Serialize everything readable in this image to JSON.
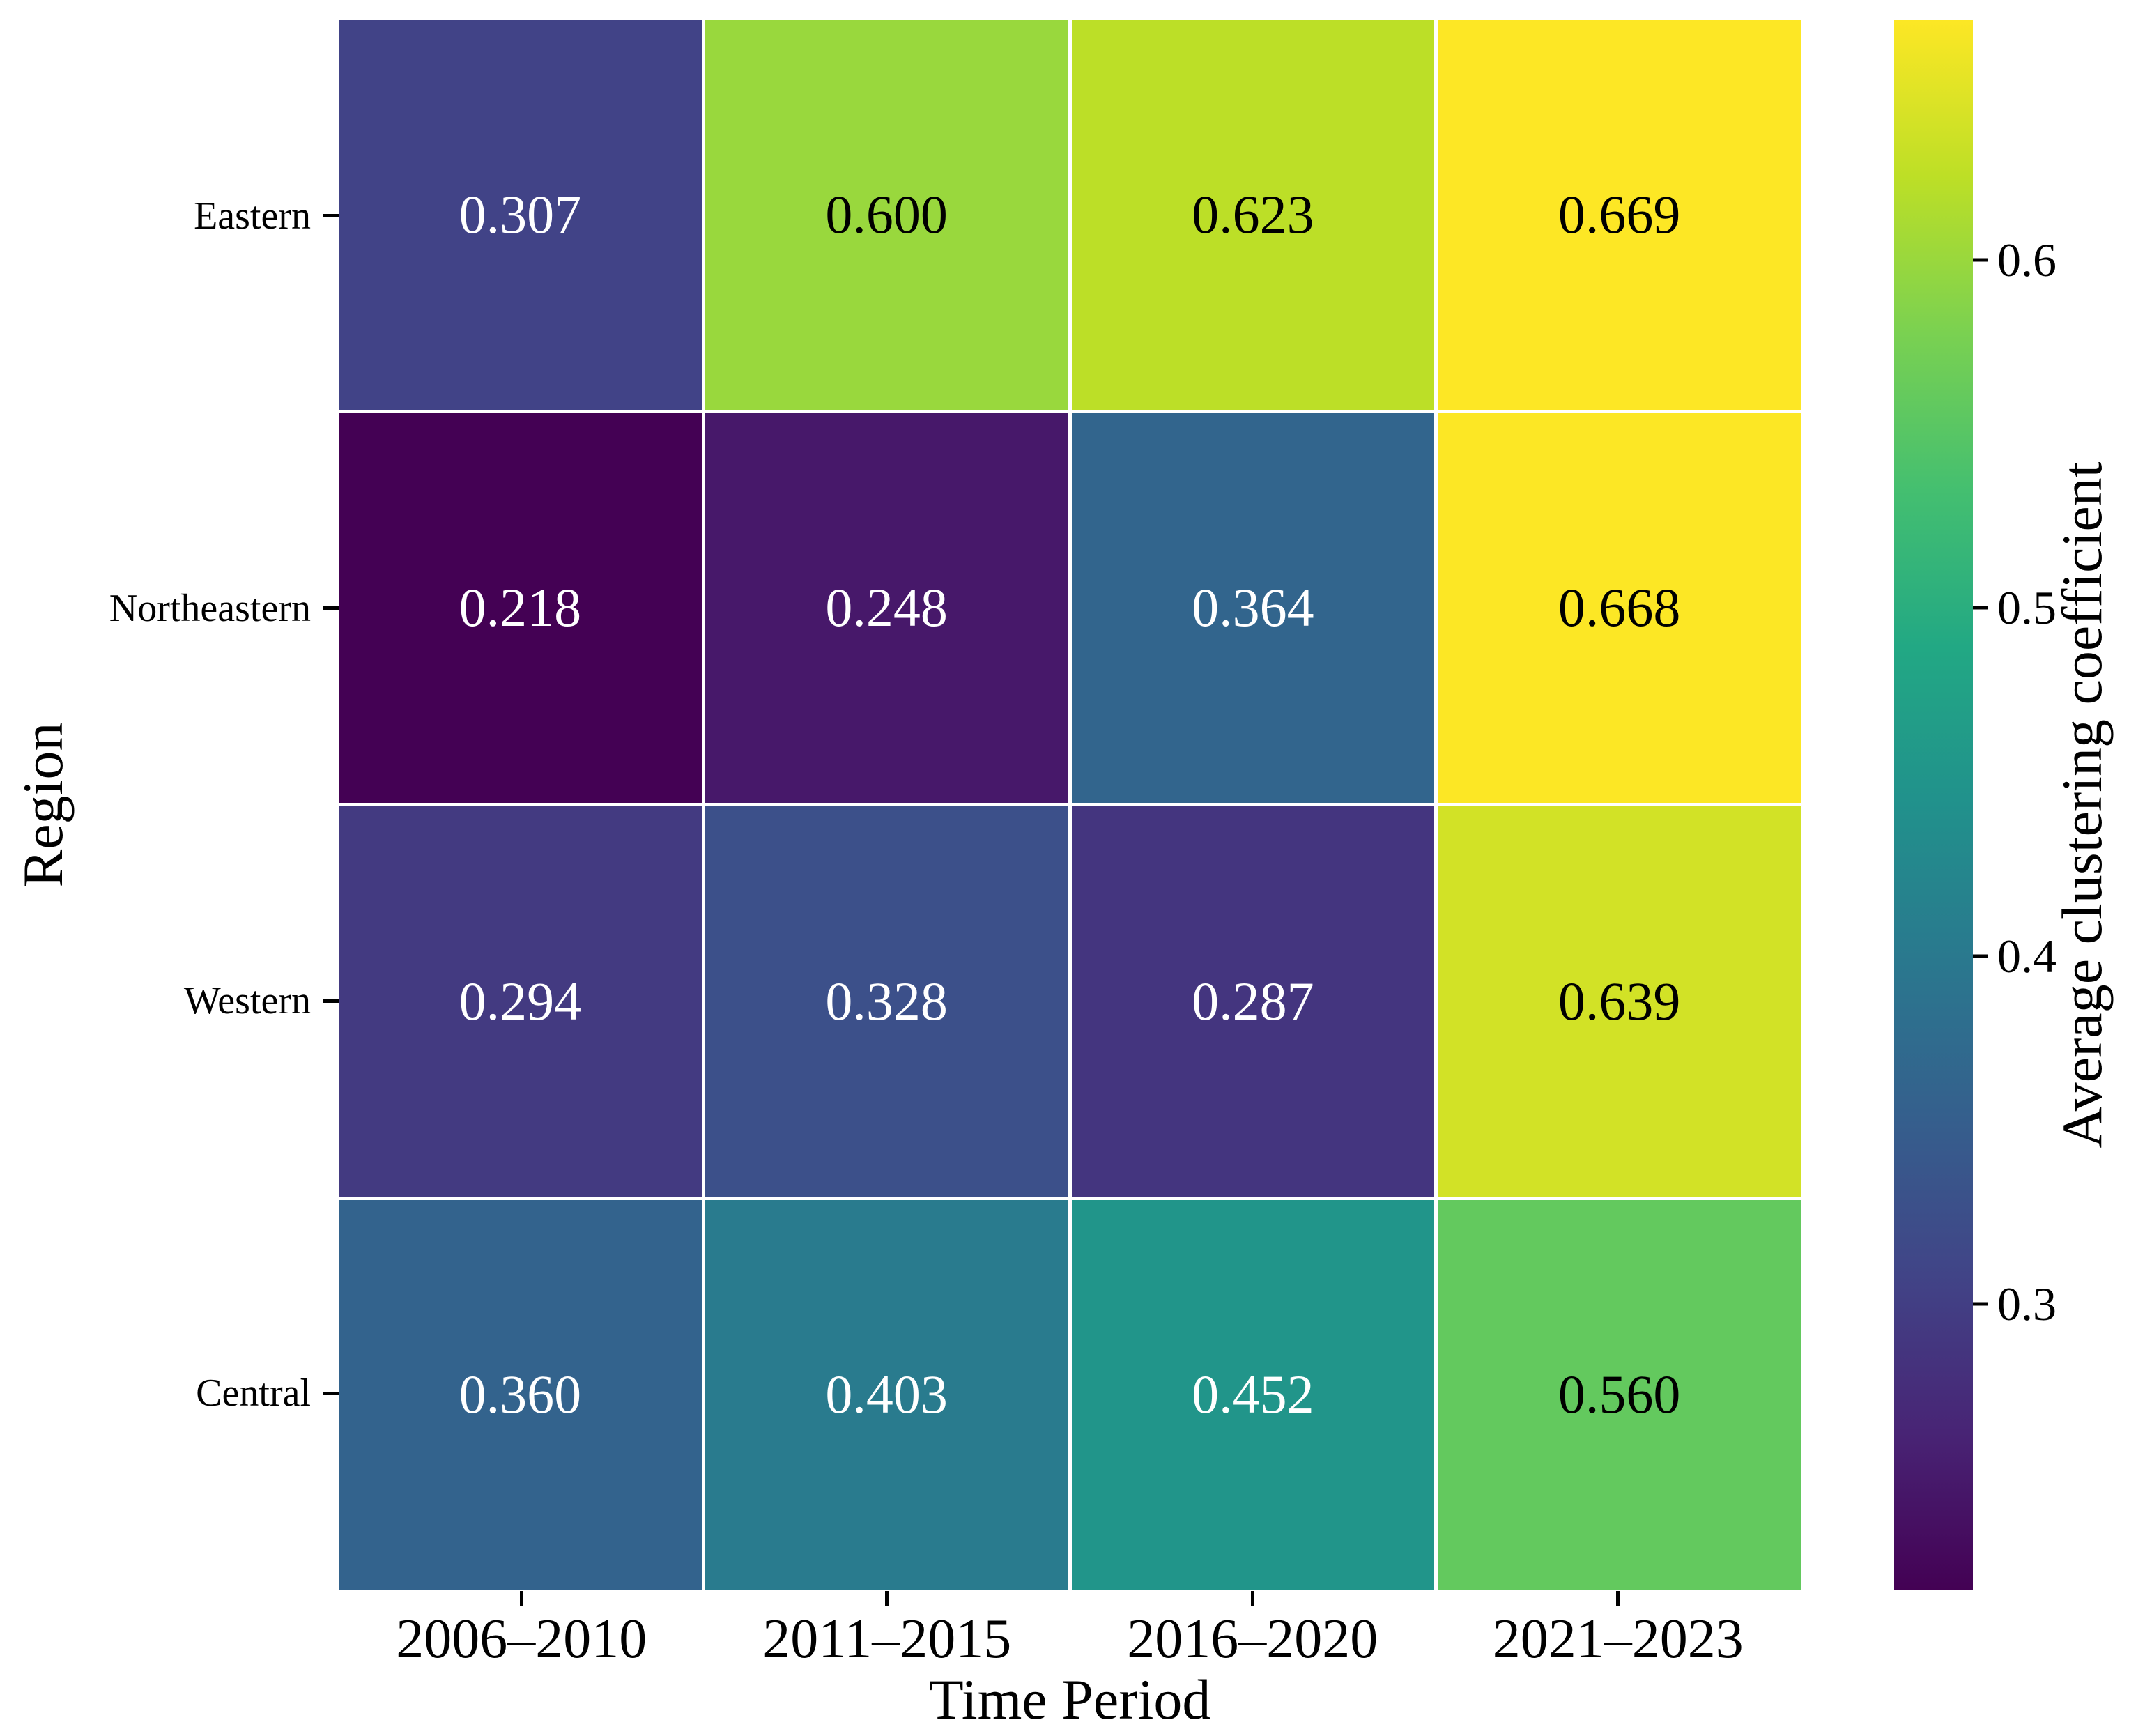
{
  "chart_data": {
    "type": "heatmap",
    "xlabel": "Time Period",
    "ylabel": "Region",
    "colorbar_label": "Average clustering coefficient",
    "x_categories": [
      "2006–2010",
      "2011–2015",
      "2016–2020",
      "2021–2023"
    ],
    "y_categories": [
      "Eastern",
      "Northeastern",
      "Western",
      "Central"
    ],
    "values": [
      [
        0.307,
        0.6,
        0.623,
        0.669
      ],
      [
        0.218,
        0.248,
        0.364,
        0.668
      ],
      [
        0.294,
        0.328,
        0.287,
        0.639
      ],
      [
        0.36,
        0.403,
        0.452,
        0.56
      ]
    ],
    "value_decimals": 3,
    "vmin": 0.218,
    "vmax": 0.669,
    "colormap": "viridis",
    "colormap_anchors": [
      "#440154",
      "#482475",
      "#414487",
      "#355f8d",
      "#2a788e",
      "#21918c",
      "#22a884",
      "#44bf70",
      "#7ad151",
      "#bddf26",
      "#fde725"
    ],
    "colorbar_ticks": [
      0.6,
      0.5,
      0.4,
      0.3
    ],
    "colorbar_tick_labels": [
      "0.6",
      "0.5",
      "0.4",
      "0.3"
    ],
    "annotation_text_light": "#ffffff",
    "annotation_text_dark": "#000000",
    "cell_gap_color": "#ffffff",
    "background_color": "#ffffff",
    "grid": false,
    "legend_position": "right-colorbar"
  }
}
